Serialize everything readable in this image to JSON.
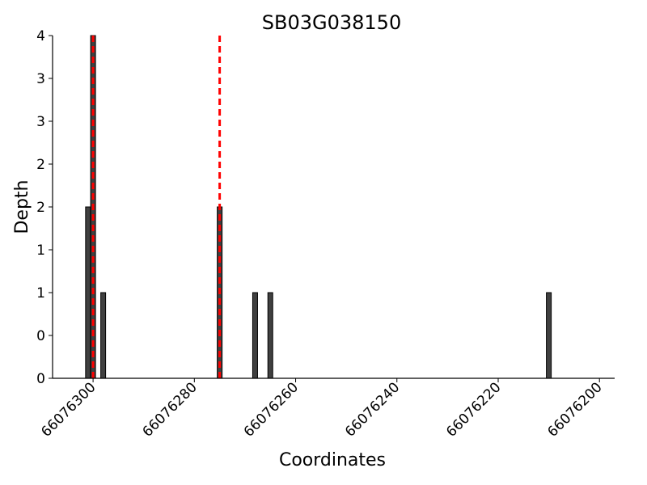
{
  "chart_data": {
    "type": "bar",
    "title": "SB03G038150",
    "xlabel": "Coordinates",
    "ylabel": "Depth",
    "x_reversed": true,
    "xlim": [
      66076308,
      66076197
    ],
    "ylim": [
      0,
      4
    ],
    "x_ticks": [
      66076300,
      66076280,
      66076260,
      66076240,
      66076220,
      66076200
    ],
    "y_ticks": [
      0,
      0.5,
      1,
      1.5,
      2,
      2.5,
      3,
      3.5,
      4
    ],
    "y_tick_labels": [
      "0",
      "0",
      "1",
      "1",
      "2",
      "2",
      "3",
      "3",
      "4"
    ],
    "bars": [
      {
        "x": 66076301,
        "value": 2
      },
      {
        "x": 66076300,
        "value": 4
      },
      {
        "x": 66076298,
        "value": 1
      },
      {
        "x": 66076275,
        "value": 2
      },
      {
        "x": 66076268,
        "value": 1
      },
      {
        "x": 66076265,
        "value": 1
      },
      {
        "x": 66076210,
        "value": 1
      }
    ],
    "reference_lines": [
      66076300,
      66076275
    ],
    "bar_color": "#404040",
    "reference_line_color": "#ff0000",
    "grid": false,
    "legend": "none"
  }
}
